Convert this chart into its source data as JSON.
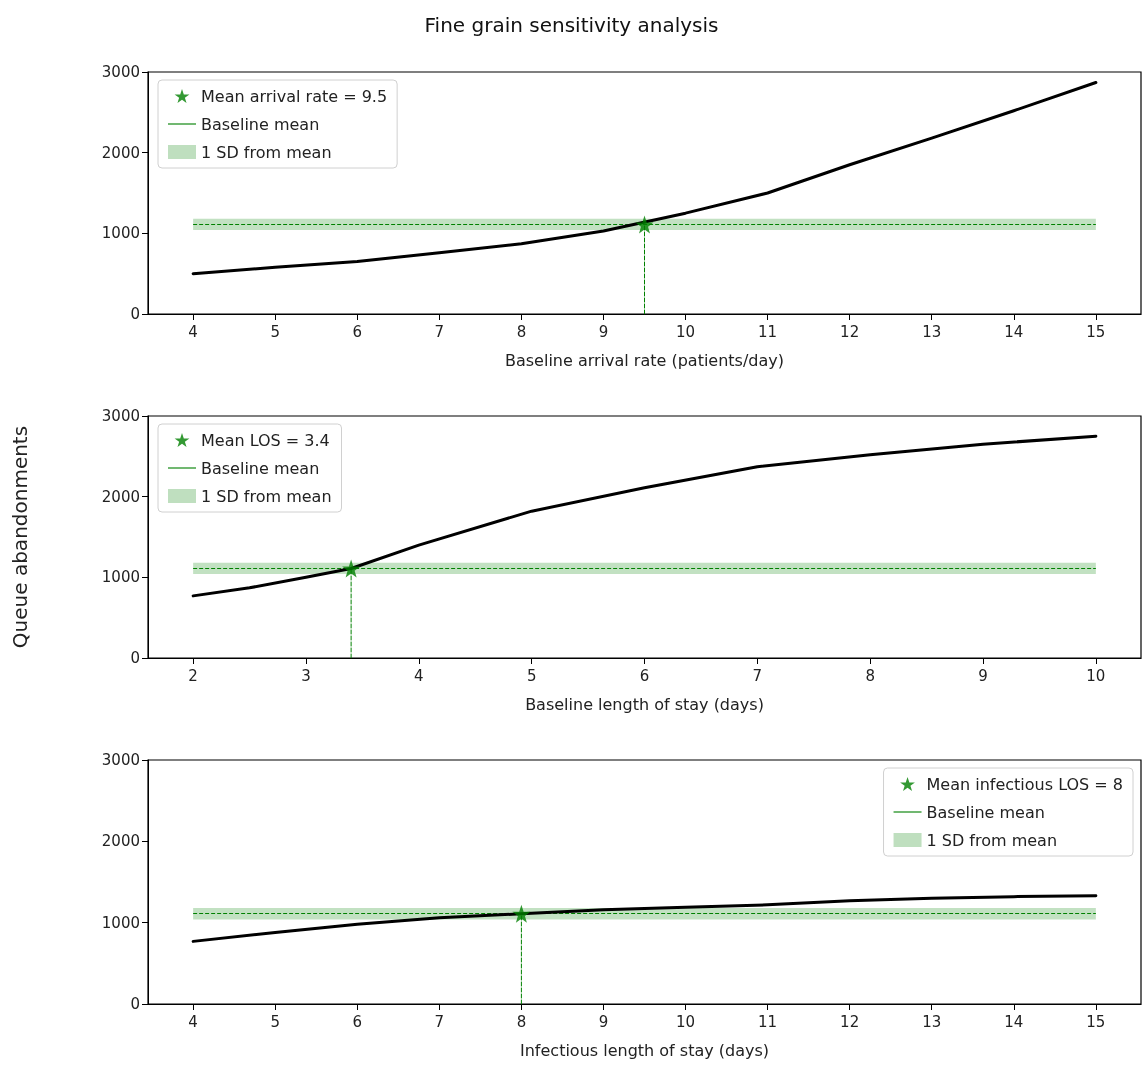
{
  "chart_data": [
    {
      "type": "line",
      "title": "Fine grain sensitivity analysis",
      "xlabel": "Baseline arrival rate (patients/day)",
      "xlim": [
        3.45,
        15.55
      ],
      "xticks": [
        4,
        5,
        6,
        7,
        8,
        9,
        10,
        11,
        12,
        13,
        14,
        15
      ],
      "ylim": [
        0,
        3000
      ],
      "yticks": [
        0,
        1000,
        2000,
        3000
      ],
      "legend": "top left",
      "grid": false,
      "series": [
        {
          "color": "#000000",
          "marker": "none",
          "x": [
            4,
            5,
            6,
            7,
            8,
            9,
            10,
            11,
            12,
            13,
            14,
            15
          ],
          "values": [
            500,
            580,
            650,
            760,
            870,
            1030,
            1250,
            1500,
            1850,
            2180,
            2520,
            2870
          ]
        },
        {
          "type": "scatter",
          "name": "Mean arrival rate = 9.5",
          "color": "#008000",
          "marker": "star",
          "x": [
            9.5
          ],
          "values": [
            1110
          ]
        },
        {
          "color": "#008000",
          "marker": "none",
          "line_style": "dashed",
          "x": [
            9.5,
            9.5
          ],
          "values": [
            0,
            1110
          ]
        }
      ],
      "ref_lines": [
        {
          "axis": "y",
          "value": 1110,
          "label": "Baseline mean",
          "color": "#008000",
          "line_style": "dashed"
        }
      ],
      "bands": [
        {
          "axis": "y",
          "from": 1040,
          "to": 1180,
          "label": "1 SD from mean",
          "color": "#bfdfbf"
        }
      ]
    },
    {
      "type": "line",
      "xlabel": "Baseline length of stay (days)",
      "ylabel": "Queue abandonments",
      "xlim": [
        1.6,
        10.4
      ],
      "xticks": [
        2,
        3,
        4,
        5,
        6,
        7,
        8,
        9,
        10
      ],
      "ylim": [
        0,
        3000
      ],
      "yticks": [
        0,
        1000,
        2000,
        3000
      ],
      "legend": "top left",
      "grid": false,
      "series": [
        {
          "color": "#000000",
          "marker": "none",
          "x": [
            2,
            2.5,
            3,
            3.4,
            4,
            5,
            6,
            7,
            8,
            9,
            10
          ],
          "values": [
            770,
            870,
            1000,
            1110,
            1400,
            1820,
            2110,
            2370,
            2520,
            2650,
            2750
          ]
        },
        {
          "type": "scatter",
          "name": "Mean LOS = 3.4",
          "color": "#008000",
          "marker": "star",
          "x": [
            3.4
          ],
          "values": [
            1110
          ]
        },
        {
          "color": "#008000",
          "marker": "none",
          "line_style": "dashed",
          "x": [
            3.4,
            3.4
          ],
          "values": [
            0,
            1110
          ]
        }
      ],
      "ref_lines": [
        {
          "axis": "y",
          "value": 1110,
          "label": "Baseline mean",
          "color": "#008000",
          "line_style": "dashed"
        }
      ],
      "bands": [
        {
          "axis": "y",
          "from": 1040,
          "to": 1180,
          "label": "1 SD from mean",
          "color": "#bfdfbf"
        }
      ]
    },
    {
      "type": "line",
      "xlabel": "Infectious length of stay (days)",
      "xlim": [
        3.45,
        15.55
      ],
      "xticks": [
        4,
        5,
        6,
        7,
        8,
        9,
        10,
        11,
        12,
        13,
        14,
        15
      ],
      "ylim": [
        0,
        3000
      ],
      "yticks": [
        0,
        1000,
        2000,
        3000
      ],
      "legend": "top right",
      "grid": false,
      "series": [
        {
          "color": "#000000",
          "marker": "none",
          "x": [
            4,
            5,
            6,
            7,
            8,
            9,
            10,
            11,
            12,
            13,
            14,
            15
          ],
          "values": [
            770,
            880,
            980,
            1060,
            1110,
            1160,
            1190,
            1220,
            1270,
            1300,
            1320,
            1330
          ]
        },
        {
          "type": "scatter",
          "name": "Mean infectious LOS = 8",
          "color": "#008000",
          "marker": "star",
          "x": [
            8
          ],
          "values": [
            1110
          ]
        },
        {
          "color": "#008000",
          "marker": "none",
          "line_style": "dashed",
          "x": [
            8,
            8
          ],
          "values": [
            0,
            1110
          ]
        }
      ],
      "ref_lines": [
        {
          "axis": "y",
          "value": 1110,
          "label": "Baseline mean",
          "color": "#008000",
          "line_style": "dashed"
        }
      ],
      "bands": [
        {
          "axis": "y",
          "from": 1040,
          "to": 1180,
          "label": "1 SD from mean",
          "color": "#bfdfbf"
        }
      ]
    }
  ]
}
